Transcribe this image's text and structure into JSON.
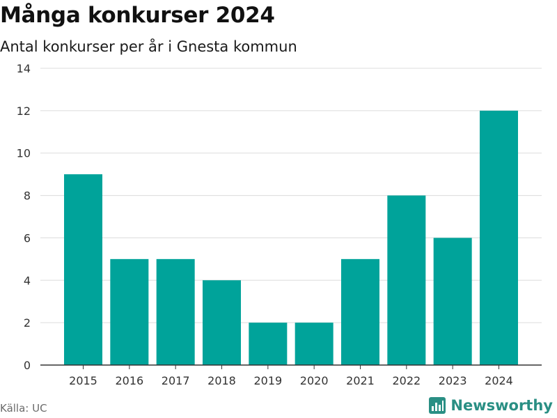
{
  "chart_data": {
    "type": "bar",
    "title": "Många konkurser 2024",
    "subtitle": "Antal konkurser per år i Gnesta kommun",
    "categories": [
      "2015",
      "2016",
      "2017",
      "2018",
      "2019",
      "2020",
      "2021",
      "2022",
      "2023",
      "2024"
    ],
    "values": [
      9,
      5,
      5,
      4,
      2,
      2,
      5,
      8,
      6,
      12
    ],
    "xlabel": "",
    "ylabel": "",
    "ylim": [
      0,
      14
    ],
    "yticks": [
      0,
      2,
      4,
      6,
      8,
      10,
      12,
      14
    ],
    "grid": true,
    "bar_color": "#00a39a"
  },
  "footer": {
    "source": "Källa: UC",
    "brand": "Newsworthy",
    "brand_color": "#2a8f84",
    "brand_icon": "newsworthy-logo-icon"
  }
}
